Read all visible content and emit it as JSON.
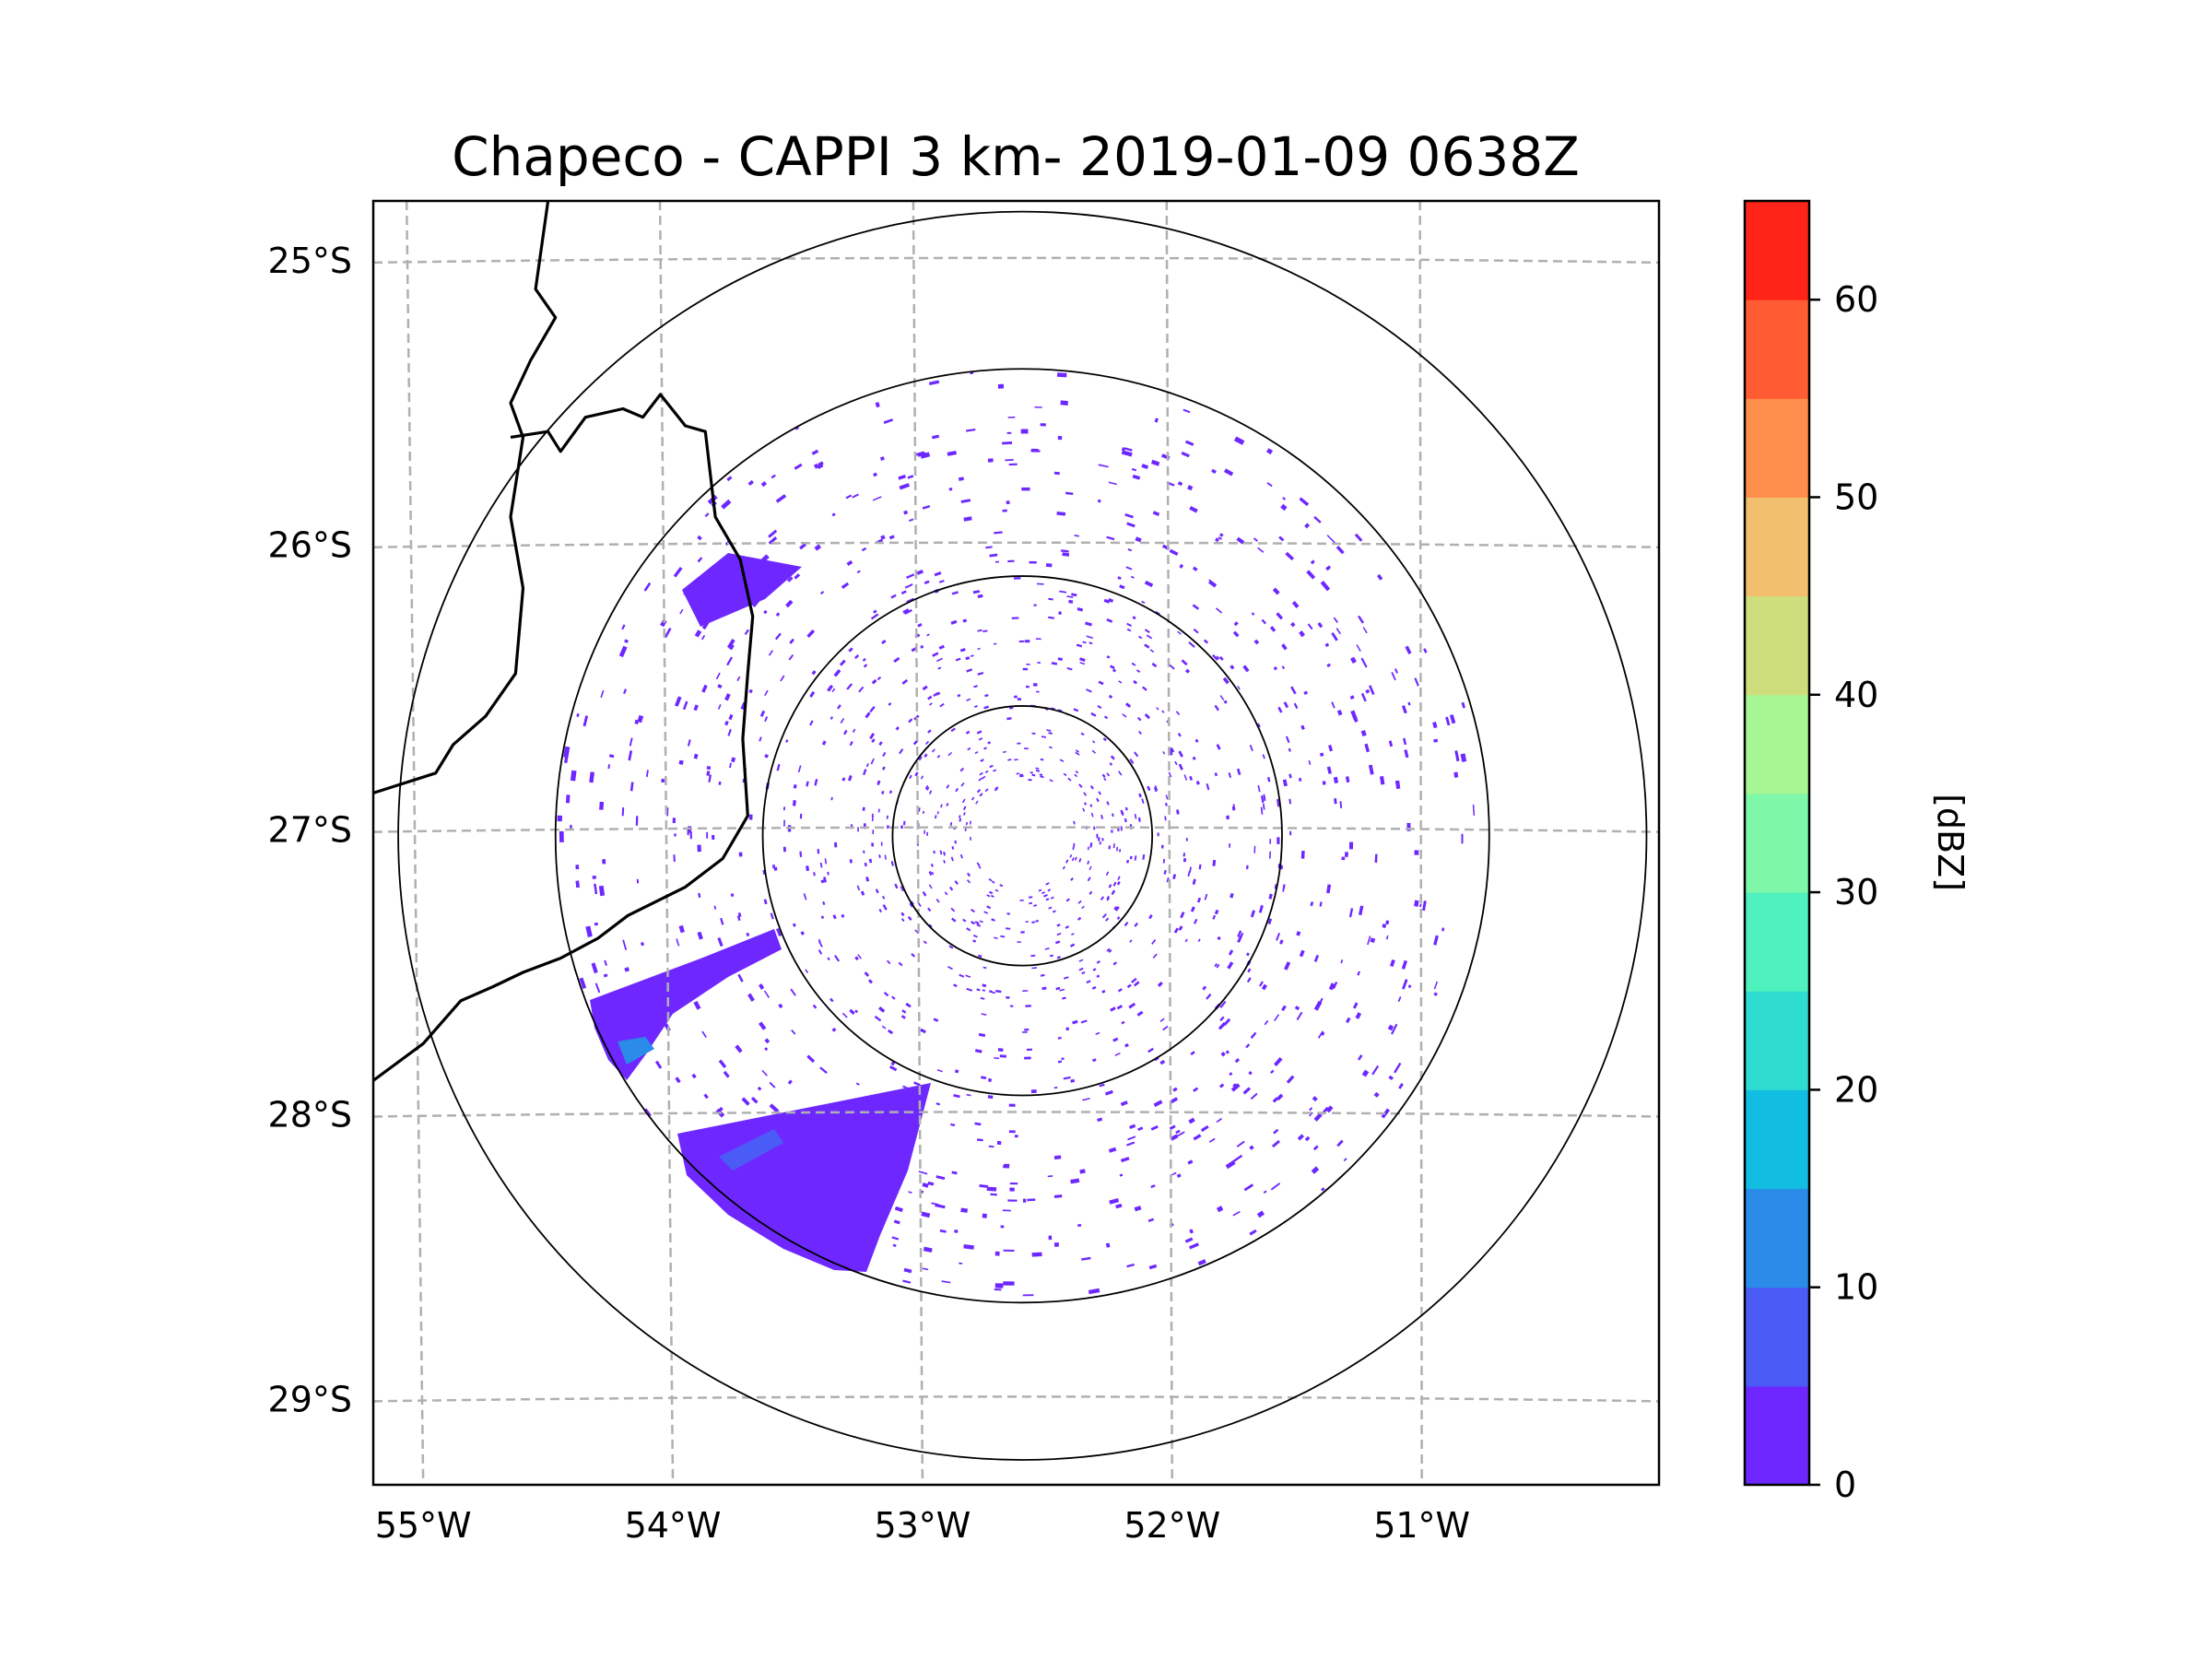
{
  "title": "Chapeco - CAPPI 3 km- 2019-01-09 0638Z",
  "colorbar": {
    "label": "[dBZ]",
    "ticks": [
      "0",
      "10",
      "20",
      "30",
      "40",
      "50",
      "60"
    ],
    "tick_values": [
      0,
      10,
      20,
      30,
      40,
      50,
      60
    ],
    "min": 0,
    "max": 65,
    "colors": [
      "#6e28ff",
      "#4a5cf5",
      "#2a8ce8",
      "#12bde2",
      "#2fdcd0",
      "#4ff2bd",
      "#7ef8a8",
      "#a6f793",
      "#cede7c",
      "#f1bf6d",
      "#ff8e4c",
      "#ff5c33",
      "#ff2418"
    ]
  },
  "map": {
    "lon_range": [
      -55.2,
      -50.05
    ],
    "lat_range": [
      -29.3,
      -24.79
    ],
    "lon_ticks": [
      "55°W",
      "54°W",
      "53°W",
      "52°W",
      "51°W"
    ],
    "lon_tick_values": [
      -55,
      -54,
      -53,
      -52,
      -51
    ],
    "lat_ticks": [
      "25°S",
      "26°S",
      "27°S",
      "28°S",
      "29°S"
    ],
    "lat_tick_values": [
      -25,
      -26,
      -27,
      -28,
      -29
    ],
    "radar_center": {
      "lon": -52.6,
      "lat": -27.02
    },
    "range_rings_deg": [
      0.52,
      1.04,
      1.87,
      2.5
    ],
    "borders": [
      [
        [
          -54.5,
          -24.79
        ],
        [
          -54.55,
          -25.1
        ],
        [
          -54.47,
          -25.2
        ],
        [
          -54.57,
          -25.35
        ],
        [
          -54.65,
          -25.5
        ],
        [
          -54.6,
          -25.62
        ],
        [
          -54.65,
          -25.9
        ],
        [
          -54.6,
          -26.15
        ],
        [
          -54.63,
          -26.45
        ],
        [
          -54.75,
          -26.6
        ],
        [
          -54.88,
          -26.7
        ],
        [
          -54.95,
          -26.8
        ],
        [
          -55.2,
          -26.87
        ]
      ],
      [
        [
          -54.65,
          -25.62
        ],
        [
          -54.5,
          -25.6
        ],
        [
          -54.45,
          -25.67
        ],
        [
          -54.35,
          -25.55
        ],
        [
          -54.2,
          -25.52
        ],
        [
          -54.12,
          -25.55
        ],
        [
          -54.05,
          -25.47
        ],
        [
          -53.95,
          -25.58
        ],
        [
          -53.87,
          -25.6
        ],
        [
          -53.85,
          -25.75
        ],
        [
          -53.83,
          -25.9
        ],
        [
          -53.73,
          -26.05
        ],
        [
          -53.68,
          -26.25
        ],
        [
          -53.7,
          -26.45
        ],
        [
          -53.72,
          -26.68
        ],
        [
          -53.7,
          -26.95
        ],
        [
          -53.8,
          -27.1
        ],
        [
          -53.95,
          -27.2
        ],
        [
          -54.18,
          -27.3
        ],
        [
          -54.3,
          -27.38
        ],
        [
          -54.45,
          -27.45
        ],
        [
          -54.6,
          -27.5
        ],
        [
          -54.72,
          -27.55
        ],
        [
          -54.85,
          -27.6
        ],
        [
          -55.0,
          -27.75
        ],
        [
          -55.2,
          -27.88
        ]
      ]
    ]
  },
  "legend_entries": []
}
